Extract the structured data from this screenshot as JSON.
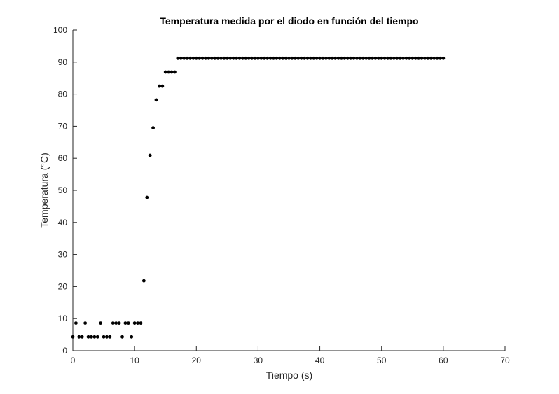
{
  "chart_data": {
    "type": "scatter",
    "title": "Temperatura medida por el diodo en función del tiempo",
    "xlabel": "Tiempo (s)",
    "ylabel": "Temperatura (°C)",
    "xlim": [
      0,
      70
    ],
    "ylim": [
      0,
      100
    ],
    "xticks": [
      0,
      10,
      20,
      30,
      40,
      50,
      60,
      70
    ],
    "yticks": [
      0,
      10,
      20,
      30,
      40,
      50,
      60,
      70,
      80,
      90,
      100
    ],
    "grid": false,
    "legend": "none",
    "marker_color": "#000000",
    "series": [
      {
        "x": [
          0,
          0.5,
          1,
          1.5,
          2,
          2.5,
          3,
          3.5,
          4,
          4.5,
          5,
          5.5,
          6,
          6.5,
          7,
          7.5,
          8,
          8.5,
          9,
          9.5,
          10,
          10.5,
          11,
          11.5,
          12,
          12.5,
          13,
          13.5,
          14,
          14.5,
          15,
          15.5,
          16,
          16.5,
          17,
          17.5,
          18,
          18.5,
          19,
          19.5,
          20,
          20.5,
          21,
          21.5,
          22,
          22.5,
          23,
          23.5,
          24,
          24.5,
          25,
          25.5,
          26,
          26.5,
          27,
          27.5,
          28,
          28.5,
          29,
          29.5,
          30,
          30.5,
          31,
          31.5,
          32,
          32.5,
          33,
          33.5,
          34,
          34.5,
          35,
          35.5,
          36,
          36.5,
          37,
          37.5,
          38,
          38.5,
          39,
          39.5,
          40,
          40.5,
          41,
          41.5,
          42,
          42.5,
          43,
          43.5,
          44,
          44.5,
          45,
          45.5,
          46,
          46.5,
          47,
          47.5,
          48,
          48.5,
          49,
          49.5,
          50,
          50.5,
          51,
          51.5,
          52,
          52.5,
          53,
          53.5,
          54,
          54.5,
          55,
          55.5,
          56,
          56.5,
          57,
          57.5,
          58,
          58.5,
          59,
          59.5,
          60
        ],
        "y": [
          4.3,
          8.6,
          4.3,
          4.3,
          8.6,
          4.3,
          4.3,
          4.3,
          4.3,
          8.6,
          4.3,
          4.3,
          4.3,
          8.6,
          8.6,
          8.6,
          4.3,
          8.6,
          8.6,
          4.3,
          8.6,
          8.6,
          8.6,
          21.8,
          47.8,
          60.9,
          69.5,
          78.2,
          82.5,
          82.5,
          86.9,
          86.9,
          86.9,
          86.9,
          91.2,
          91.2,
          91.2,
          91.2,
          91.2,
          91.2,
          91.2,
          91.2,
          91.2,
          91.2,
          91.2,
          91.2,
          91.2,
          91.2,
          91.2,
          91.2,
          91.2,
          91.2,
          91.2,
          91.2,
          91.2,
          91.2,
          91.2,
          91.2,
          91.2,
          91.2,
          91.2,
          91.2,
          91.2,
          91.2,
          91.2,
          91.2,
          91.2,
          91.2,
          91.2,
          91.2,
          91.2,
          91.2,
          91.2,
          91.2,
          91.2,
          91.2,
          91.2,
          91.2,
          91.2,
          91.2,
          91.2,
          91.2,
          91.2,
          91.2,
          91.2,
          91.2,
          91.2,
          91.2,
          91.2,
          91.2,
          91.2,
          91.2,
          91.2,
          91.2,
          91.2,
          91.2,
          91.2,
          91.2,
          91.2,
          91.2,
          91.2,
          91.2,
          91.2,
          91.2,
          91.2,
          91.2,
          91.2,
          91.2,
          91.2,
          91.2,
          91.2,
          91.2,
          91.2,
          91.2,
          91.2,
          91.2,
          91.2,
          91.2,
          91.2,
          91.2,
          91.2
        ]
      }
    ]
  }
}
